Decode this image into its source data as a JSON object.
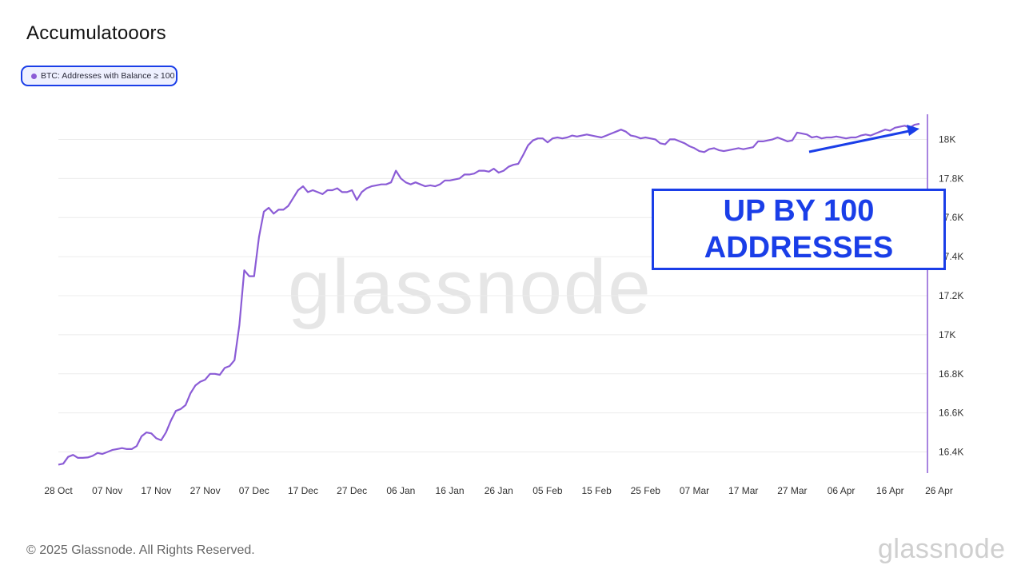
{
  "title": "Accumulatooors",
  "legend": {
    "label": "BTC: Addresses with Balance ≥ 100",
    "color": "#8b5cd6"
  },
  "annotation": {
    "line1": "UP BY 100",
    "line2": "ADDRESSES",
    "color": "#1a3ee8"
  },
  "watermark": "glassnode",
  "footer": {
    "copyright": "© 2025 Glassnode. All Rights Reserved.",
    "logo": "glassnode"
  },
  "chart_data": {
    "type": "line",
    "title": "Accumulatooors",
    "xlabel": "",
    "ylabel": "",
    "ylim": [
      16300,
      18100
    ],
    "grid": true,
    "legend_position": "top-left",
    "y_axis_side": "right",
    "x_tick_labels": [
      "28 Oct",
      "07 Nov",
      "17 Nov",
      "27 Nov",
      "07 Dec",
      "17 Dec",
      "27 Dec",
      "06 Jan",
      "16 Jan",
      "26 Jan",
      "05 Feb",
      "15 Feb",
      "25 Feb",
      "07 Mar",
      "17 Mar",
      "27 Mar",
      "06 Apr",
      "16 Apr",
      "26 Apr"
    ],
    "y_ticks": [
      16400,
      16600,
      16800,
      17000,
      17200,
      17400,
      17600,
      17800,
      18000
    ],
    "y_tick_labels": [
      "16.4K",
      "16.6K",
      "16.8K",
      "17K",
      "17.2K",
      "17.4K",
      "17.6K",
      "17.8K",
      "18K"
    ],
    "series": [
      {
        "name": "BTC: Addresses with Balance ≥ 100",
        "color": "#8b5cd6",
        "x_start": "2024-10-28",
        "x_step_days": 1,
        "values": [
          16335,
          16340,
          16375,
          16385,
          16370,
          16370,
          16372,
          16380,
          16395,
          16390,
          16400,
          16410,
          16415,
          16420,
          16415,
          16415,
          16430,
          16480,
          16500,
          16495,
          16470,
          16460,
          16500,
          16560,
          16610,
          16620,
          16640,
          16700,
          16740,
          16760,
          16770,
          16800,
          16800,
          16795,
          16830,
          16840,
          16870,
          17050,
          17330,
          17300,
          17300,
          17500,
          17630,
          17650,
          17620,
          17640,
          17640,
          17660,
          17700,
          17740,
          17760,
          17730,
          17740,
          17730,
          17720,
          17740,
          17740,
          17750,
          17730,
          17730,
          17740,
          17690,
          17730,
          17750,
          17760,
          17765,
          17770,
          17770,
          17780,
          17840,
          17800,
          17780,
          17770,
          17780,
          17770,
          17760,
          17765,
          17760,
          17770,
          17790,
          17790,
          17795,
          17800,
          17820,
          17820,
          17825,
          17840,
          17840,
          17835,
          17850,
          17830,
          17840,
          17860,
          17870,
          17875,
          17920,
          17970,
          17995,
          18005,
          18005,
          17985,
          18005,
          18010,
          18005,
          18010,
          18020,
          18015,
          18020,
          18025,
          18020,
          18015,
          18010,
          18020,
          18030,
          18040,
          18050,
          18040,
          18020,
          18015,
          18005,
          18010,
          18005,
          18000,
          17980,
          17975,
          18000,
          18000,
          17990,
          17980,
          17965,
          17955,
          17940,
          17935,
          17950,
          17955,
          17945,
          17940,
          17945,
          17950,
          17955,
          17950,
          17955,
          17960,
          17990,
          17990,
          17995,
          18000,
          18010,
          18000,
          17990,
          17995,
          18035,
          18030,
          18025,
          18010,
          18015,
          18005,
          18010,
          18010,
          18015,
          18010,
          18005,
          18010,
          18010,
          18020,
          18025,
          18020,
          18030,
          18040,
          18050,
          18045,
          18060,
          18065,
          18070,
          18060,
          18075,
          18080
        ]
      }
    ]
  }
}
